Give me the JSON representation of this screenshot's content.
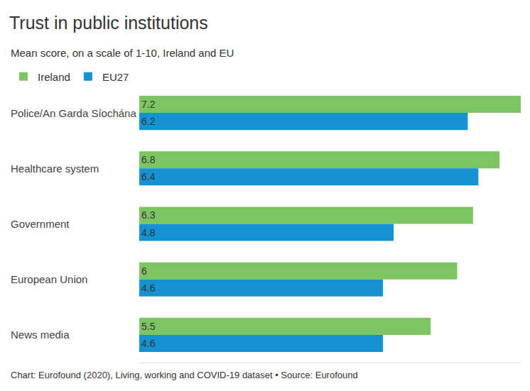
{
  "chart_data": {
    "type": "bar",
    "orientation": "horizontal",
    "title": "Trust in public institutions",
    "subtitle": "Mean score, on a scale of 1-10, Ireland and EU",
    "caption": "Chart: Eurofound (2020), Living, working and COVID-19 dataset • Source: Eurofound",
    "categories": [
      "Police/An Garda Síochána",
      "Healthcare system",
      "Government",
      "European Union",
      "News media"
    ],
    "series": [
      {
        "name": "Ireland",
        "color": "#7dc462",
        "values": [
          7.2,
          6.8,
          6.3,
          6,
          5.5
        ]
      },
      {
        "name": "EU27",
        "color": "#1592d1",
        "values": [
          6.2,
          6.4,
          4.8,
          4.6,
          4.6
        ]
      }
    ],
    "xlim": [
      0,
      7.2
    ],
    "xticks": [],
    "data_labels": true,
    "tick_labels": false,
    "grid": false,
    "legend": "top-left"
  }
}
